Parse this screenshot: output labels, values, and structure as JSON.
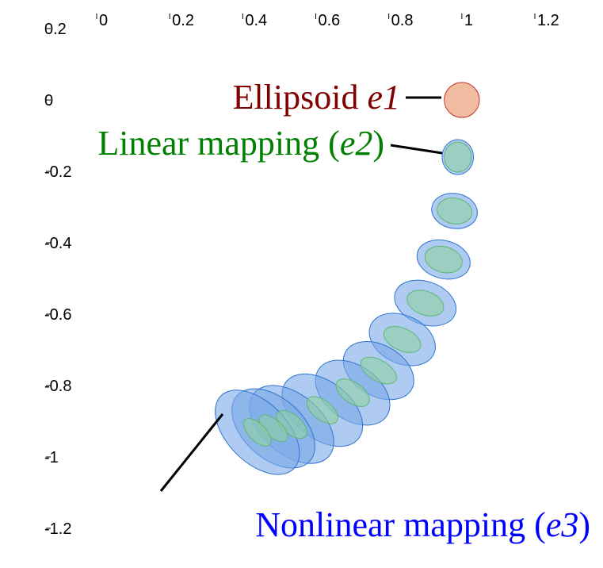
{
  "chart_data": {
    "type": "ellipse",
    "xlim": [
      0,
      1.2
    ],
    "ylim": [
      -1.2,
      0.2
    ],
    "xticks": [
      0,
      0.2,
      0.4,
      0.6,
      0.8,
      1,
      1.2
    ],
    "yticks": [
      0.2,
      0,
      -0.2,
      -0.4,
      -0.6,
      -0.8,
      -1,
      -1.2
    ],
    "series": [
      {
        "color": "#7aa9e8",
        "edge": "#2f74d0",
        "ellipses": [
          {
            "x": 0.989,
            "y": -0.16,
            "rx": 0.043,
            "ry": 0.049,
            "angle": 0
          },
          {
            "x": 0.98,
            "y": -0.311,
            "rx": 0.063,
            "ry": 0.049,
            "angle": 10
          },
          {
            "x": 0.95,
            "y": -0.447,
            "rx": 0.074,
            "ry": 0.053,
            "angle": 15
          },
          {
            "x": 0.9,
            "y": -0.569,
            "rx": 0.087,
            "ry": 0.06,
            "angle": 20
          },
          {
            "x": 0.837,
            "y": -0.671,
            "rx": 0.095,
            "ry": 0.067,
            "angle": 25
          },
          {
            "x": 0.772,
            "y": -0.758,
            "rx": 0.104,
            "ry": 0.071,
            "angle": 30
          },
          {
            "x": 0.701,
            "y": -0.82,
            "rx": 0.113,
            "ry": 0.076,
            "angle": 35
          },
          {
            "x": 0.618,
            "y": -0.869,
            "rx": 0.126,
            "ry": 0.08,
            "angle": 38
          },
          {
            "x": 0.534,
            "y": -0.909,
            "rx": 0.134,
            "ry": 0.084,
            "angle": 40
          },
          {
            "x": 0.484,
            "y": -0.92,
            "rx": 0.134,
            "ry": 0.084,
            "angle": 42
          },
          {
            "x": 0.44,
            "y": -0.931,
            "rx": 0.141,
            "ry": 0.084,
            "angle": 45
          }
        ]
      },
      {
        "color": "#8fd1a2",
        "edge": "#5cb874",
        "ellipses": [
          {
            "x": 0.989,
            "y": -0.16,
            "rx": 0.037,
            "ry": 0.042,
            "angle": 0
          },
          {
            "x": 0.98,
            "y": -0.311,
            "rx": 0.048,
            "ry": 0.036,
            "angle": 10
          },
          {
            "x": 0.95,
            "y": -0.447,
            "rx": 0.052,
            "ry": 0.036,
            "angle": 15
          },
          {
            "x": 0.9,
            "y": -0.569,
            "rx": 0.052,
            "ry": 0.033,
            "angle": 20
          },
          {
            "x": 0.837,
            "y": -0.671,
            "rx": 0.054,
            "ry": 0.031,
            "angle": 25
          },
          {
            "x": 0.772,
            "y": -0.758,
            "rx": 0.054,
            "ry": 0.029,
            "angle": 30
          },
          {
            "x": 0.701,
            "y": -0.82,
            "rx": 0.052,
            "ry": 0.029,
            "angle": 35
          },
          {
            "x": 0.618,
            "y": -0.869,
            "rx": 0.05,
            "ry": 0.027,
            "angle": 38
          },
          {
            "x": 0.534,
            "y": -0.909,
            "rx": 0.05,
            "ry": 0.027,
            "angle": 40
          },
          {
            "x": 0.484,
            "y": -0.92,
            "rx": 0.048,
            "ry": 0.024,
            "angle": 42
          },
          {
            "x": 0.44,
            "y": -0.931,
            "rx": 0.048,
            "ry": 0.024,
            "angle": 45
          }
        ]
      },
      {
        "color": "#f2bca2",
        "edge": "#c0392b",
        "ellipses": [
          {
            "x": 1,
            "y": 0,
            "rx": 0.048,
            "ry": 0.049,
            "angle": 0
          }
        ]
      }
    ],
    "annotations": [
      {
        "color": "#800000",
        "parts": [
          {
            "text": "Ellipsoid ",
            "italic": false
          },
          {
            "text": "e1",
            "italic": true
          }
        ]
      },
      {
        "color": "#008000",
        "parts": [
          {
            "text": "Linear mapping (",
            "italic": false
          },
          {
            "text": "e2",
            "italic": true
          },
          {
            "text": ")",
            "italic": false
          }
        ]
      },
      {
        "color": "#0000ff",
        "parts": [
          {
            "text": "Nonlinear mapping (",
            "italic": false
          },
          {
            "text": "e3",
            "italic": true
          },
          {
            "text": ")",
            "italic": false
          }
        ]
      }
    ]
  }
}
